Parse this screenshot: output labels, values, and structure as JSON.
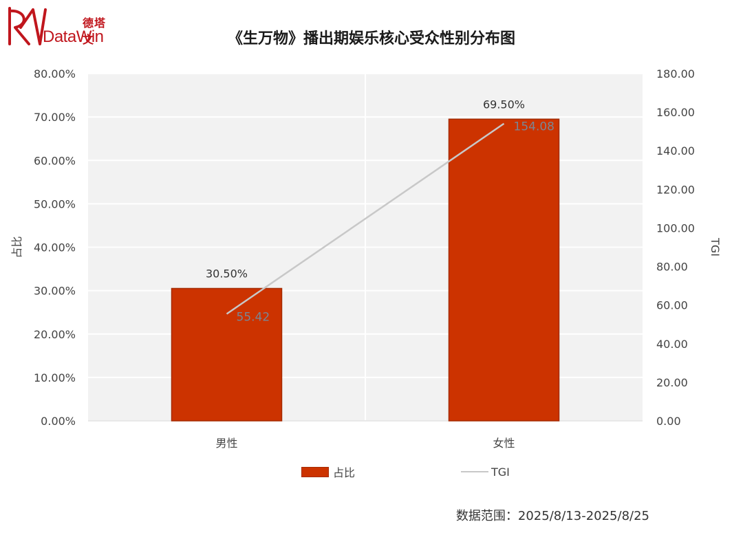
{
  "logo": {
    "name_cn": "德塔文",
    "name_en": "DataWin"
  },
  "title": "《生万物》播出期娱乐核心受众性别分布图",
  "chart_data": {
    "type": "bar",
    "title": "《生万物》播出期娱乐核心受众性别分布图",
    "categories": [
      "男性",
      "女性"
    ],
    "series": [
      {
        "name": "占比",
        "type": "bar",
        "axis": "left",
        "values": [
          30.5,
          69.5
        ],
        "labels": [
          "30.50%",
          "69.50%"
        ],
        "color": "#cc3300"
      },
      {
        "name": "TGI",
        "type": "line",
        "axis": "right",
        "values": [
          55.42,
          154.08
        ],
        "labels": [
          "55.42",
          "154.08"
        ],
        "color": "#c8c8c8"
      }
    ],
    "ylabel": "占比",
    "y2label": "TGI",
    "ylim": [
      0,
      80
    ],
    "y2lim": [
      0,
      180
    ],
    "yticks": [
      "0.00%",
      "10.00%",
      "20.00%",
      "30.00%",
      "40.00%",
      "50.00%",
      "60.00%",
      "70.00%",
      "80.00%"
    ],
    "y2ticks": [
      "0.00",
      "20.00",
      "40.00",
      "60.00",
      "80.00",
      "100.00",
      "120.00",
      "140.00",
      "160.00",
      "180.00"
    ],
    "grid": true,
    "legend_position": "bottom"
  },
  "footer": "数据范围：2025/8/13-2025/8/25"
}
